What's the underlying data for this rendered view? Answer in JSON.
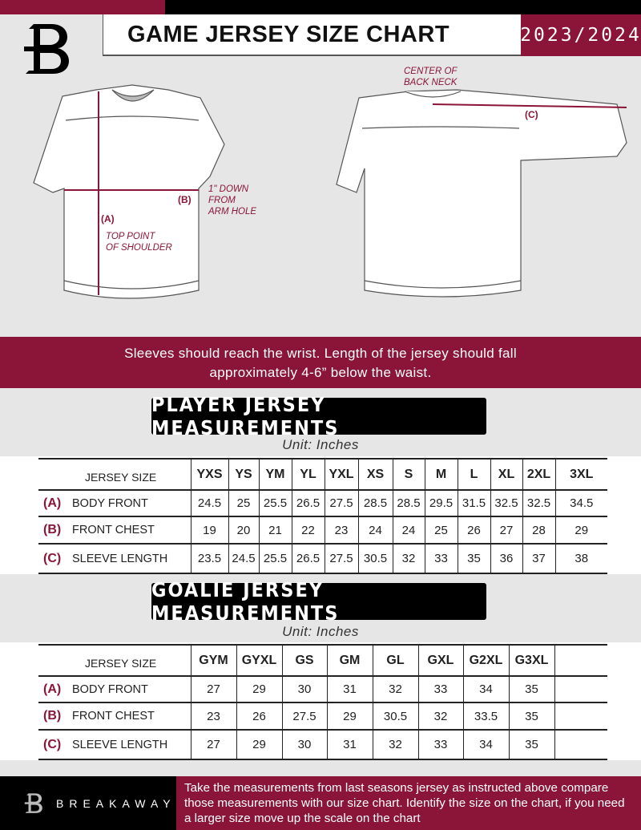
{
  "header": {
    "title": "GAME JERSEY SIZE CHART",
    "season": "2023/2024",
    "logo_icon": "breakaway-b-logo"
  },
  "diagram": {
    "center_back_neck": "CENTER OF\nBACK NECK",
    "marker_a": "(A)",
    "marker_b": "(B)",
    "marker_c": "(C)",
    "top_point_shoulder": "TOP POINT\nOF SHOULDER",
    "down_from_armhole": "1\" DOWN\nFROM\nARM HOLE"
  },
  "banner": {
    "line1": "Sleeves should reach the wrist. Length of the jersey should fall",
    "line2": "approximately 4-6” below the waist."
  },
  "player": {
    "title": "PLAYER JERSEY MEASUREMENTS",
    "unit": "Unit: Inches",
    "size_label": "JERSEY SIZE",
    "sizes": [
      "YXS",
      "YS",
      "YM",
      "YL",
      "YXL",
      "XS",
      "S",
      "M",
      "L",
      "XL",
      "2XL",
      "3XL"
    ],
    "rows": [
      {
        "key": "(A)",
        "label": "BODY FRONT",
        "values": [
          "24.5",
          "25",
          "25.5",
          "26.5",
          "27.5",
          "28.5",
          "28.5",
          "29.5",
          "31.5",
          "32.5",
          "32.5",
          "34.5"
        ]
      },
      {
        "key": "(B)",
        "label": "FRONT CHEST",
        "values": [
          "19",
          "20",
          "21",
          "22",
          "23",
          "24",
          "24",
          "25",
          "26",
          "27",
          "28",
          "29"
        ]
      },
      {
        "key": "(C)",
        "label": "SLEEVE LENGTH",
        "values": [
          "23.5",
          "24.5",
          "25.5",
          "26.5",
          "27.5",
          "30.5",
          "32",
          "33",
          "35",
          "36",
          "37",
          "38"
        ]
      }
    ]
  },
  "goalie": {
    "title": "GOALIE JERSEY MEASUREMENTS",
    "unit": "Unit: Inches",
    "size_label": "JERSEY SIZE",
    "sizes": [
      "GYM",
      "GYXL",
      "GS",
      "GM",
      "GL",
      "GXL",
      "G2XL",
      "G3XL",
      ""
    ],
    "rows": [
      {
        "key": "(A)",
        "label": "BODY FRONT",
        "values": [
          "27",
          "29",
          "30",
          "31",
          "32",
          "33",
          "34",
          "35",
          ""
        ]
      },
      {
        "key": "(B)",
        "label": "FRONT CHEST",
        "values": [
          "23",
          "26",
          "27.5",
          "29",
          "30.5",
          "32",
          "33.5",
          "35",
          ""
        ]
      },
      {
        "key": "(C)",
        "label": "SLEEVE LENGTH",
        "values": [
          "27",
          "29",
          "30",
          "31",
          "32",
          "33",
          "34",
          "35",
          ""
        ]
      }
    ]
  },
  "footer": {
    "brand": "BREAKAWAY",
    "text": "Take the measurements from last seasons jersey as instructed above compare those measurements  with our size chart. Identify the size on the chart, if you need a larger size move up the scale on the chart"
  },
  "colors": {
    "accent": "#8a1538",
    "background": "#e6e6e7"
  }
}
